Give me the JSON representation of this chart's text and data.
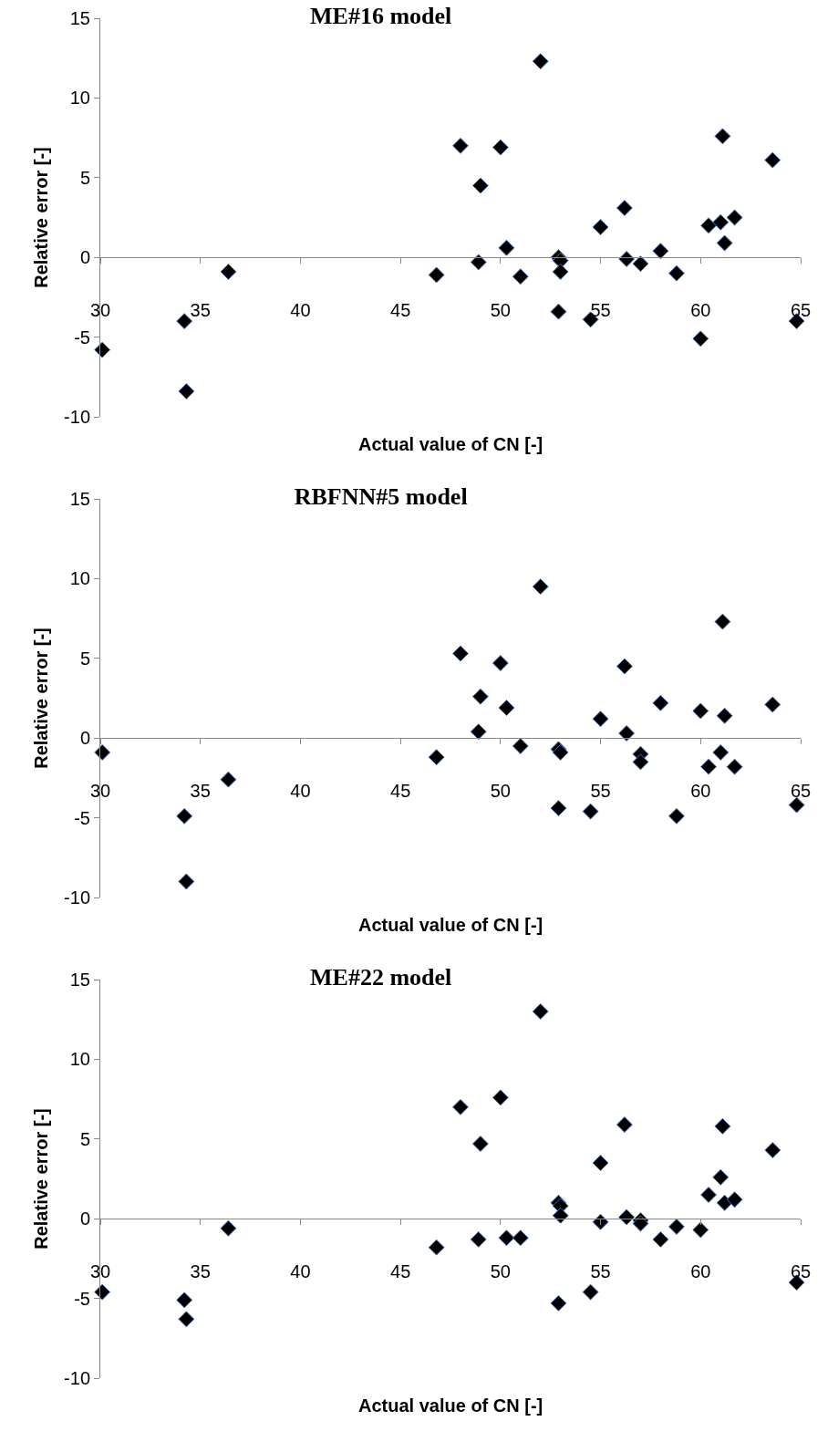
{
  "chart_data": [
    {
      "type": "scatter",
      "title": "ME#16 model",
      "xlabel": "Actual value of CN [-]",
      "ylabel": "Relative error [-]",
      "marker": "diamond",
      "color": "#000000",
      "grid": false,
      "xlim": [
        30,
        65
      ],
      "xticks": [
        30,
        35,
        40,
        45,
        50,
        55,
        60,
        65
      ],
      "ylim": [
        -10,
        15
      ],
      "yticks": [
        -10,
        -5,
        0,
        5,
        10,
        15
      ],
      "x": [
        30.1,
        34.2,
        34.3,
        36.4,
        46.8,
        48.0,
        49.0,
        48.9,
        50.0,
        50.3,
        51.0,
        52.0,
        52.9,
        53.0,
        53.0,
        52.9,
        54.5,
        55.0,
        56.2,
        56.3,
        57.0,
        58.0,
        58.8,
        60.0,
        60.4,
        61.0,
        61.1,
        61.2,
        61.7,
        63.6,
        64.8
      ],
      "values": [
        -5.8,
        -4.0,
        -8.4,
        -0.9,
        -1.1,
        7.0,
        4.5,
        -0.3,
        6.9,
        0.6,
        -1.2,
        12.3,
        0.0,
        -0.2,
        -0.9,
        -3.4,
        -3.9,
        1.9,
        3.1,
        -0.1,
        -0.4,
        0.4,
        -1.0,
        -5.1,
        2.0,
        2.2,
        7.6,
        0.9,
        2.5,
        6.1,
        -4.0
      ]
    },
    {
      "type": "scatter",
      "title": "RBFNN#5 model",
      "xlabel": "Actual value of CN [-]",
      "ylabel": "Relative error [-]",
      "marker": "diamond",
      "color": "#000000",
      "grid": false,
      "xlim": [
        30,
        65
      ],
      "xticks": [
        30,
        35,
        40,
        45,
        50,
        55,
        60,
        65
      ],
      "ylim": [
        -10,
        15
      ],
      "yticks": [
        -10,
        -5,
        0,
        5,
        10,
        15
      ],
      "x": [
        30.1,
        34.2,
        34.3,
        36.4,
        46.8,
        48.0,
        49.0,
        48.9,
        50.0,
        50.3,
        51.0,
        52.0,
        52.9,
        53.0,
        52.9,
        54.5,
        55.0,
        56.2,
        56.3,
        57.0,
        57.0,
        58.0,
        58.8,
        60.0,
        60.4,
        61.0,
        61.1,
        61.2,
        61.7,
        63.6,
        64.8
      ],
      "values": [
        -0.9,
        -4.9,
        -9.0,
        -2.6,
        -1.2,
        5.3,
        2.6,
        0.4,
        4.7,
        1.9,
        -0.5,
        9.5,
        -0.7,
        -0.9,
        -4.4,
        -4.6,
        1.2,
        4.5,
        0.3,
        -1.0,
        -1.5,
        2.2,
        -4.9,
        1.7,
        -1.8,
        -0.9,
        7.3,
        1.4,
        -1.8,
        2.1,
        -4.2
      ]
    },
    {
      "type": "scatter",
      "title": "ME#22 model",
      "xlabel": "Actual value of CN [-]",
      "ylabel": "Relative error [-]",
      "marker": "diamond",
      "color": "#000000",
      "grid": false,
      "xlim": [
        30,
        65
      ],
      "xticks": [
        30,
        35,
        40,
        45,
        50,
        55,
        60,
        65
      ],
      "ylim": [
        -10,
        15
      ],
      "yticks": [
        -10,
        -5,
        0,
        5,
        10,
        15
      ],
      "x": [
        30.1,
        34.2,
        34.3,
        36.4,
        46.8,
        48.0,
        49.0,
        48.9,
        50.0,
        50.3,
        51.0,
        52.0,
        52.9,
        53.0,
        53.0,
        52.9,
        54.5,
        55.0,
        55.0,
        56.2,
        56.3,
        57.0,
        57.0,
        58.0,
        58.8,
        60.0,
        60.4,
        61.0,
        61.1,
        61.2,
        61.7,
        63.6,
        64.8
      ],
      "values": [
        -4.6,
        -5.1,
        -6.3,
        -0.6,
        -1.8,
        7.0,
        4.7,
        -1.3,
        7.6,
        -1.2,
        -1.2,
        13.0,
        1.0,
        0.8,
        0.2,
        -5.3,
        -4.6,
        3.5,
        -0.2,
        5.9,
        0.1,
        -0.1,
        -0.3,
        -1.3,
        -0.5,
        -0.7,
        1.5,
        2.6,
        5.8,
        1.0,
        1.2,
        4.3,
        -4.0
      ]
    }
  ]
}
